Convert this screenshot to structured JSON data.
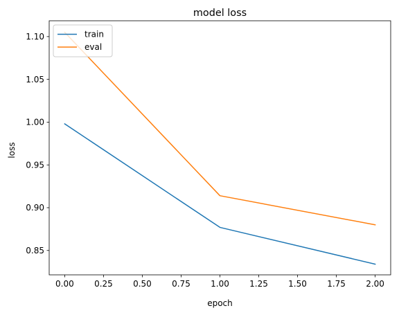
{
  "chart_data": {
    "type": "line",
    "title": "model loss",
    "xlabel": "epoch",
    "ylabel": "loss",
    "x": [
      0,
      1,
      2
    ],
    "xlim": [
      -0.1,
      2.1
    ],
    "ylim": [
      0.8215,
      1.1185
    ],
    "x_ticks": [
      0.0,
      0.25,
      0.5,
      0.75,
      1.0,
      1.25,
      1.5,
      1.75,
      2.0
    ],
    "x_tick_labels": [
      "0.00",
      "0.25",
      "0.50",
      "0.75",
      "1.00",
      "1.25",
      "1.50",
      "1.75",
      "2.00"
    ],
    "y_ticks": [
      0.85,
      0.9,
      0.95,
      1.0,
      1.05,
      1.1
    ],
    "y_tick_labels": [
      "0.85",
      "0.90",
      "0.95",
      "1.00",
      "1.05",
      "1.10"
    ],
    "grid": false,
    "legend_position": "upper-left",
    "series": [
      {
        "name": "train",
        "color": "#1f77b4",
        "values": [
          0.998,
          0.877,
          0.834
        ]
      },
      {
        "name": "eval",
        "color": "#ff7f0e",
        "values": [
          1.105,
          0.914,
          0.88
        ]
      }
    ]
  }
}
